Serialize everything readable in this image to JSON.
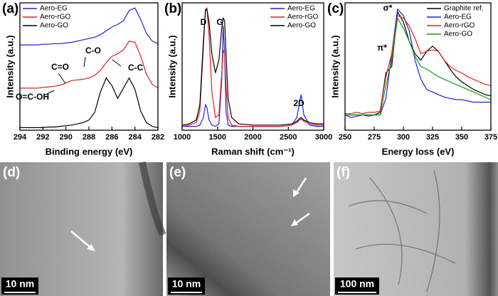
{
  "chart_data": [
    {
      "type": "line",
      "panel_label": "(a)",
      "x_label": "Binding energy (eV)",
      "y_label": "Intensity (a.u.)",
      "x": [
        294,
        293.5,
        293,
        292.5,
        292,
        291.5,
        291,
        290.5,
        290,
        289.5,
        289,
        288.5,
        288,
        287.5,
        287,
        286.5,
        286,
        285.5,
        285,
        284.5,
        284,
        283.5,
        283,
        282.5,
        282
      ],
      "series": [
        {
          "name": "Aero-EG",
          "color": "#2020e0",
          "values": [
            67,
            67,
            67,
            67,
            67.5,
            67.5,
            68,
            68,
            68.5,
            69,
            70,
            71,
            72,
            73,
            75,
            78,
            81,
            83,
            86,
            94,
            96,
            87,
            76,
            70,
            68
          ]
        },
        {
          "name": "Aero-rGO",
          "color": "#e02020",
          "values": [
            33,
            33,
            33,
            33,
            33.5,
            34,
            34.5,
            35.5,
            37,
            39,
            39.5,
            40,
            41,
            43,
            47,
            53,
            58,
            60,
            63,
            70,
            69,
            58,
            44,
            36,
            33
          ]
        },
        {
          "name": "Aero-GO",
          "color": "#000000",
          "values": [
            2,
            2,
            2,
            2,
            2,
            2.5,
            2.5,
            3,
            3.5,
            4,
            5,
            6,
            8,
            14,
            30,
            41,
            35,
            25,
            33,
            41,
            32,
            15,
            6,
            3,
            2
          ]
        }
      ],
      "annotations": [
        "O=C-OH",
        "C=O",
        "C-O",
        "C-C"
      ],
      "xlim": [
        294,
        282
      ],
      "xticks": [
        294,
        292,
        290,
        288,
        286,
        284,
        282
      ],
      "ylim": [
        0,
        100
      ],
      "legend": "top-left"
    },
    {
      "type": "line",
      "panel_label": "(b)",
      "x_label": "Raman shift (cm⁻¹)",
      "y_label": "Intensity (a.u.)",
      "x": [
        1000,
        1100,
        1200,
        1250,
        1300,
        1330,
        1350,
        1380,
        1420,
        1470,
        1520,
        1560,
        1580,
        1600,
        1620,
        1650,
        1700,
        1800,
        2000,
        2200,
        2400,
        2550,
        2620,
        2680,
        2720,
        2800,
        2900,
        3000
      ],
      "series": [
        {
          "name": "Aero-EG",
          "color": "#2020e0",
          "values": [
            3,
            3,
            3,
            4,
            10,
            20,
            18,
            8,
            4,
            3,
            5,
            40,
            82,
            60,
            15,
            4,
            3,
            3,
            3,
            3,
            3,
            4,
            10,
            28,
            12,
            4,
            3,
            3
          ]
        },
        {
          "name": "Aero-rGO",
          "color": "#e02020",
          "values": [
            3,
            4,
            6,
            15,
            65,
            95,
            96,
            75,
            30,
            10,
            12,
            45,
            63,
            60,
            35,
            10,
            4,
            3,
            3,
            3,
            3,
            4,
            6,
            9,
            7,
            5,
            4,
            4
          ]
        },
        {
          "name": "Aero-GO",
          "color": "#000000",
          "values": [
            4,
            5,
            8,
            20,
            70,
            94,
            95,
            85,
            60,
            45,
            55,
            80,
            88,
            86,
            60,
            25,
            10,
            5,
            4,
            4,
            4,
            5,
            7,
            10,
            8,
            6,
            5,
            5
          ]
        }
      ],
      "annotations": [
        "D",
        "G",
        "2D"
      ],
      "xlim": [
        1000,
        3000
      ],
      "xticks": [
        1000,
        1500,
        2000,
        2500,
        3000
      ],
      "ylim": [
        0,
        100
      ],
      "legend": "top-right"
    },
    {
      "type": "line",
      "panel_label": "(c)",
      "x_label": "Energy loss (eV)",
      "y_label": "Intensity (a.u.)",
      "x": [
        250,
        255,
        260,
        265,
        270,
        275,
        280,
        285,
        290,
        295,
        300,
        305,
        310,
        315,
        320,
        325,
        330,
        335,
        340,
        345,
        350,
        355,
        360,
        365,
        370,
        375
      ],
      "series": [
        {
          "name": "Graphite ref.",
          "color": "#000000",
          "values": [
            12,
            12,
            12,
            12,
            12,
            12,
            14,
            45,
            50,
            93,
            85,
            70,
            60,
            55,
            62,
            66,
            62,
            55,
            48,
            42,
            38,
            35,
            32,
            30,
            28,
            27
          ]
        },
        {
          "name": "Aero-EG",
          "color": "#2020e0",
          "values": [
            12,
            10,
            11,
            12,
            11,
            12,
            12,
            25,
            60,
            95,
            90,
            78,
            55,
            40,
            32,
            30,
            28,
            26,
            25,
            24,
            24,
            23,
            22,
            22,
            22,
            22
          ]
        },
        {
          "name": "Aero-rGO",
          "color": "#e02020",
          "values": [
            13,
            13,
            14,
            13,
            14,
            14,
            15,
            42,
            60,
            90,
            88,
            82,
            72,
            60,
            62,
            63,
            62,
            55,
            50,
            47,
            45,
            42,
            40,
            38,
            36,
            35
          ]
        },
        {
          "name": "Aero-GO",
          "color": "#10a010",
          "values": [
            12,
            12,
            12,
            12,
            12,
            12,
            12,
            35,
            55,
            88,
            80,
            70,
            58,
            50,
            48,
            45,
            42,
            40,
            38,
            36,
            34,
            32,
            30,
            28,
            26,
            24
          ]
        }
      ],
      "annotations": [
        "σ*",
        "π*"
      ],
      "xlim": [
        250,
        375
      ],
      "xticks": [
        250,
        275,
        300,
        325,
        350,
        375
      ],
      "ylim": [
        0,
        100
      ],
      "legend": "top-right"
    }
  ],
  "images": [
    {
      "label": "(d)",
      "scale_bar": "10 nm"
    },
    {
      "label": "(e)",
      "scale_bar": "10 nm"
    },
    {
      "label": "(f)",
      "scale_bar": "100 nm"
    }
  ]
}
